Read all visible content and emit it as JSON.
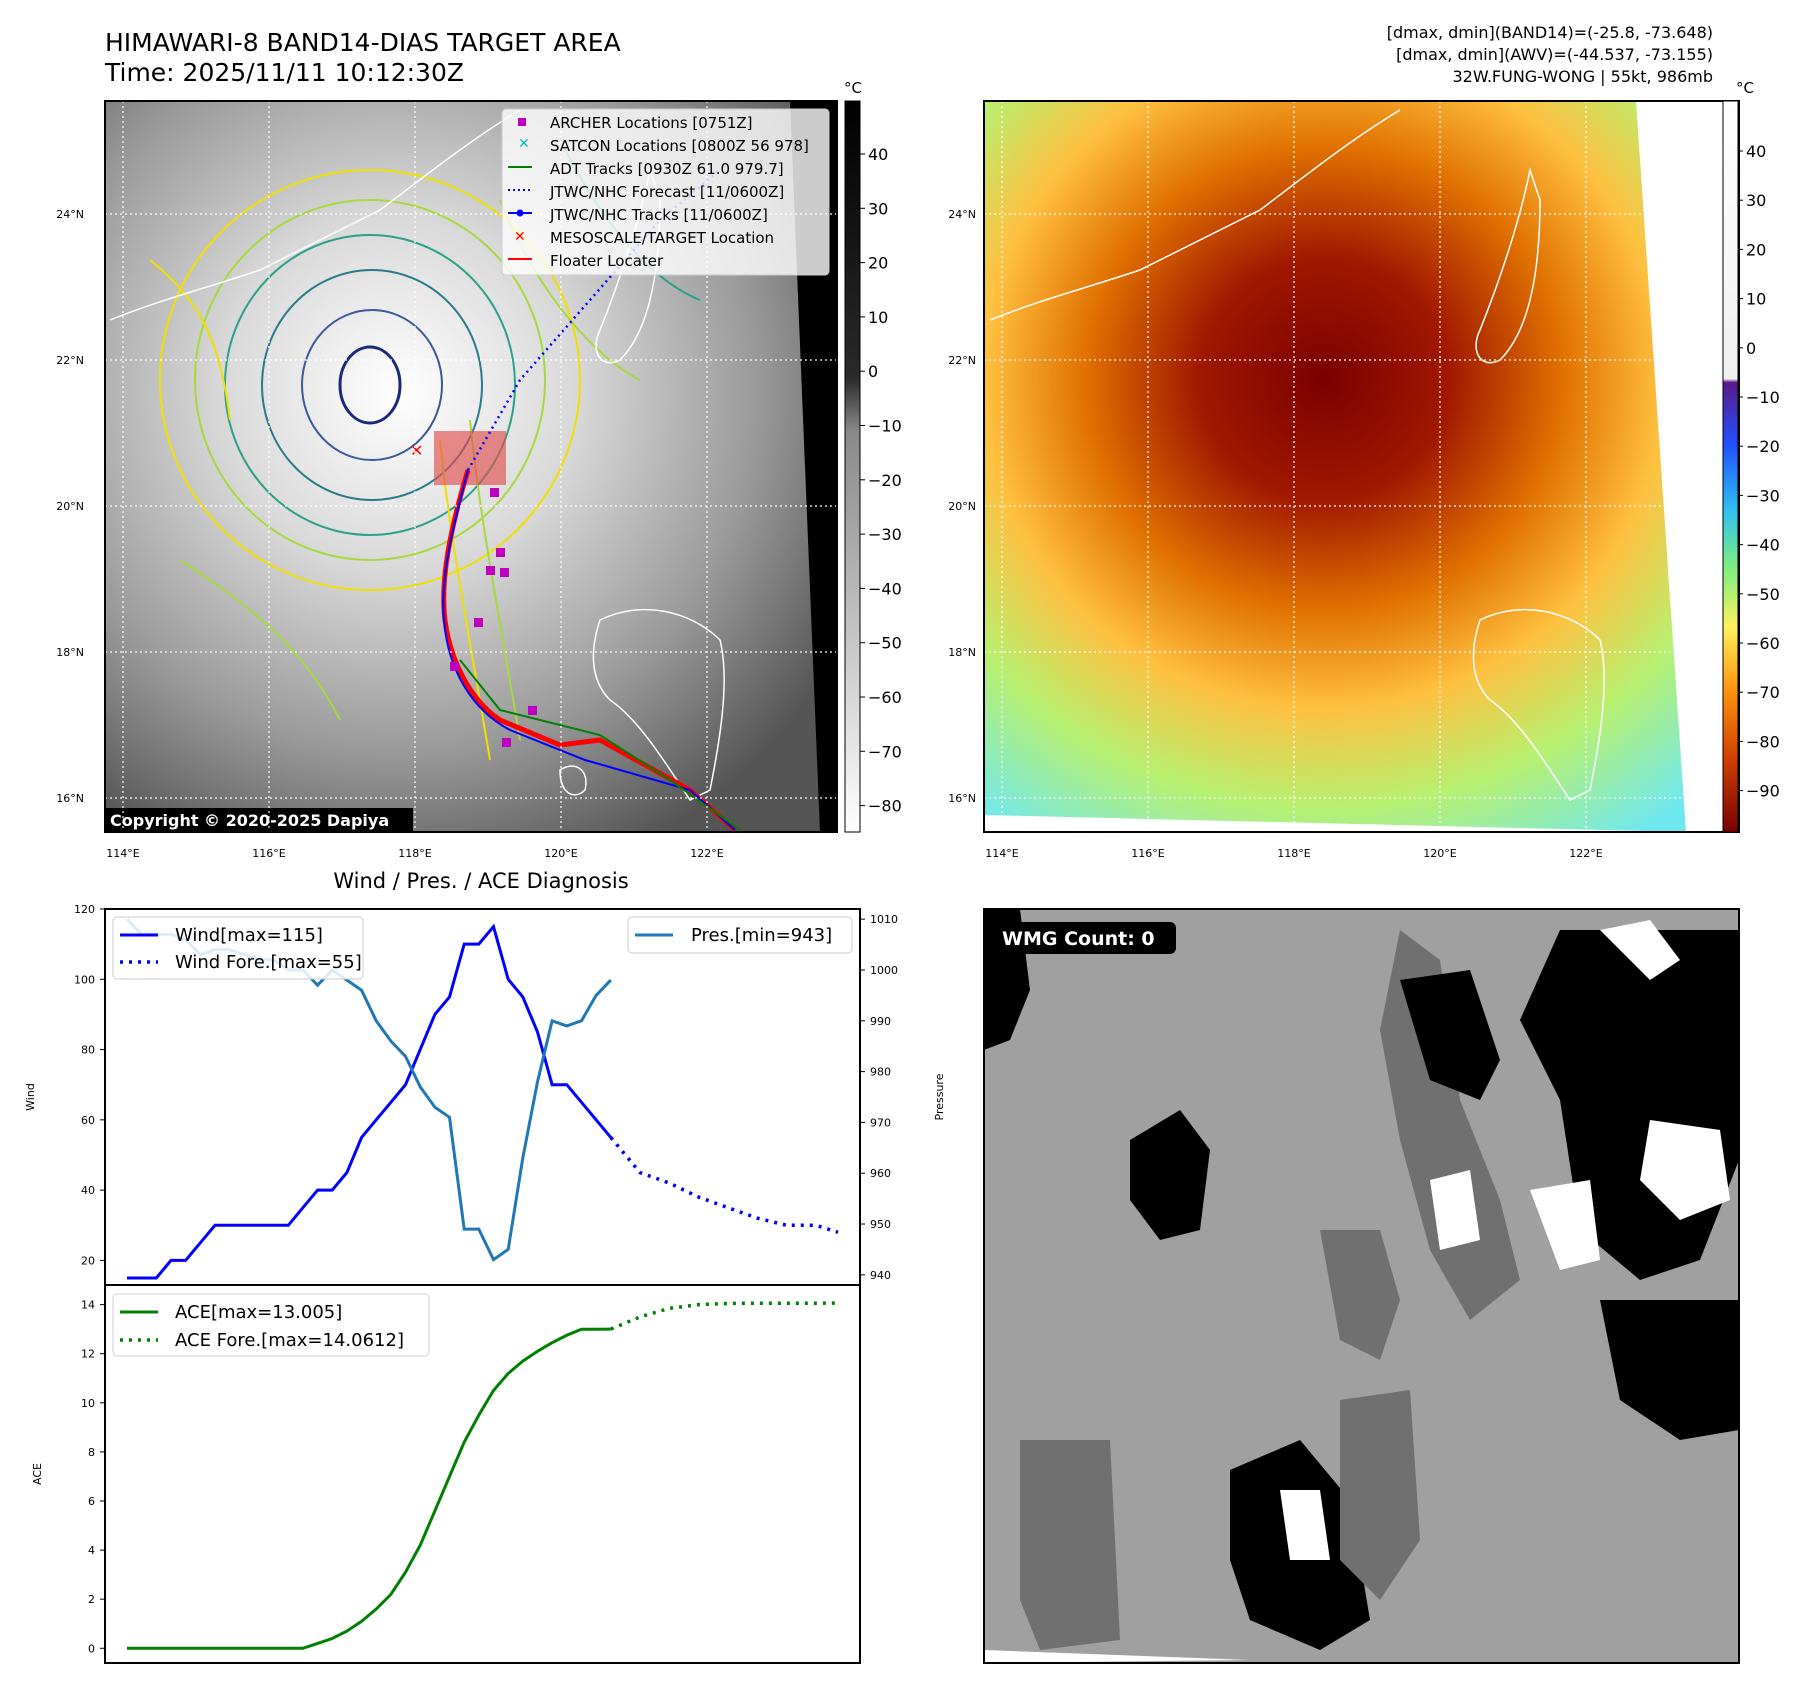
{
  "header": {
    "title_line1": "HIMAWARI-8 BAND14-DIAS TARGET AREA",
    "title_line2": "Time: 2025/11/11 10:12:30Z",
    "info_line1": "[dmax, dmin](BAND14)=(-25.8, -73.648)",
    "info_line2": "[dmax, dmin](AWV)=(-44.537, -73.155)",
    "info_line3": "32W.FUNG-WONG | 55kt, 986mb"
  },
  "map": {
    "lon_labels": [
      "114°E",
      "116°E",
      "118°E",
      "120°E",
      "122°E"
    ],
    "lat_labels": [
      "24°N",
      "22°N",
      "20°N",
      "18°N",
      "16°N"
    ],
    "copyright": "Copyright © 2020-2025 Dapiya",
    "cbar_unit": "°C",
    "cbar1_ticks": [
      "40",
      "30",
      "20",
      "10",
      "0",
      "−10",
      "−20",
      "−30",
      "−40",
      "−50",
      "−60",
      "−70",
      "−80"
    ],
    "cbar2_ticks": [
      "40",
      "30",
      "20",
      "10",
      "0",
      "−10",
      "−20",
      "−30",
      "−40",
      "−50",
      "−60",
      "−70",
      "−80",
      "−90"
    ],
    "legend": [
      "ARCHER Locations [0751Z]",
      "SATCON Locations [0800Z 56 978]",
      "ADT Tracks [0930Z 61.0 979.7]",
      "JTWC/NHC Forecast [11/0600Z]",
      "JTWC/NHC Tracks [11/0600Z]",
      "MESOSCALE/TARGET Location",
      "Floater Locater"
    ]
  },
  "wmg": {
    "count_label": "WMG Count: 0"
  },
  "colors": {
    "wind": "#0000ff",
    "pressure": "#1f77b4",
    "ace": "#008000",
    "target": "#ff0000",
    "archer": "#bf00bf",
    "satcon": "#00bfbf"
  },
  "chart_data": [
    {
      "type": "line",
      "title": "Wind / Pres. / ACE Diagnosis",
      "ylabel": "Wind",
      "ylabel_right": "Pressure",
      "ylim": [
        13,
        120
      ],
      "ylim_right": [
        938,
        1012
      ],
      "yticks": [
        20,
        40,
        60,
        80,
        100,
        120
      ],
      "yticks_right": [
        940,
        950,
        960,
        970,
        980,
        990,
        1000,
        1010
      ],
      "legend_wind": [
        "Wind[max=115]",
        "Wind Fore.[max=55]"
      ],
      "legend_pres": [
        "Pres.[min=943]"
      ],
      "series": [
        {
          "name": "Wind",
          "axis": "left",
          "x": [
            0,
            1,
            2,
            3,
            4,
            5,
            6,
            7,
            8,
            9,
            10,
            11,
            12,
            13,
            14,
            15,
            16,
            17,
            18,
            19,
            20,
            21,
            22,
            23,
            24,
            25,
            26,
            27,
            28,
            29,
            30,
            31,
            32,
            33
          ],
          "values": [
            15,
            15,
            15,
            20,
            20,
            25,
            30,
            30,
            30,
            30,
            30,
            30,
            35,
            40,
            40,
            45,
            55,
            60,
            65,
            70,
            80,
            90,
            95,
            110,
            110,
            115,
            100,
            95,
            85,
            70,
            70,
            65,
            60,
            55
          ]
        },
        {
          "name": "Wind Fore.",
          "axis": "left",
          "x": [
            33,
            35,
            37,
            39,
            41,
            43,
            45,
            47,
            48.5
          ],
          "values": [
            55,
            45,
            42,
            38,
            35,
            32,
            30,
            30,
            28
          ]
        },
        {
          "name": "Pres.",
          "axis": "right",
          "x": [
            0,
            1,
            2,
            3,
            4,
            5,
            6,
            7,
            8,
            9,
            10,
            11,
            12,
            13,
            14,
            15,
            16,
            17,
            18,
            19,
            20,
            21,
            22,
            23,
            24,
            25,
            26,
            27,
            28,
            29,
            30,
            31,
            32,
            33
          ],
          "values": [
            1010,
            1007,
            1007,
            1007,
            1006,
            1003,
            1004,
            1004,
            1003,
            1002,
            1002,
            1000,
            1000,
            997,
            1000,
            998,
            996,
            990,
            986,
            983,
            977,
            973,
            971,
            949,
            949,
            943,
            945,
            963,
            978,
            990,
            989,
            990,
            995,
            998
          ]
        }
      ]
    },
    {
      "type": "line",
      "ylabel": "ACE",
      "ylim": [
        -0.6,
        14.8
      ],
      "yticks": [
        0,
        2,
        4,
        6,
        8,
        10,
        12,
        14
      ],
      "legend": [
        "ACE[max=13.005]",
        "ACE Fore.[max=14.0612]"
      ],
      "series": [
        {
          "name": "ACE",
          "x": [
            0,
            2,
            4,
            6,
            8,
            10,
            12,
            13,
            14,
            15,
            16,
            17,
            18,
            19,
            20,
            21,
            22,
            23,
            24,
            25,
            26,
            27,
            28,
            29,
            30,
            31,
            32,
            33
          ],
          "values": [
            0,
            0,
            0,
            0,
            0,
            0,
            0,
            0.2,
            0.4,
            0.7,
            1.1,
            1.6,
            2.2,
            3.1,
            4.2,
            5.6,
            7.0,
            8.4,
            9.5,
            10.5,
            11.2,
            11.7,
            12.1,
            12.45,
            12.75,
            13.0,
            13.0,
            13.005
          ]
        },
        {
          "name": "ACE Fore.",
          "x": [
            33,
            35,
            37,
            39,
            41,
            43,
            45,
            47,
            48.5
          ],
          "values": [
            13.005,
            13.5,
            13.85,
            14.0,
            14.05,
            14.06,
            14.06,
            14.06,
            14.0612
          ]
        }
      ]
    }
  ]
}
